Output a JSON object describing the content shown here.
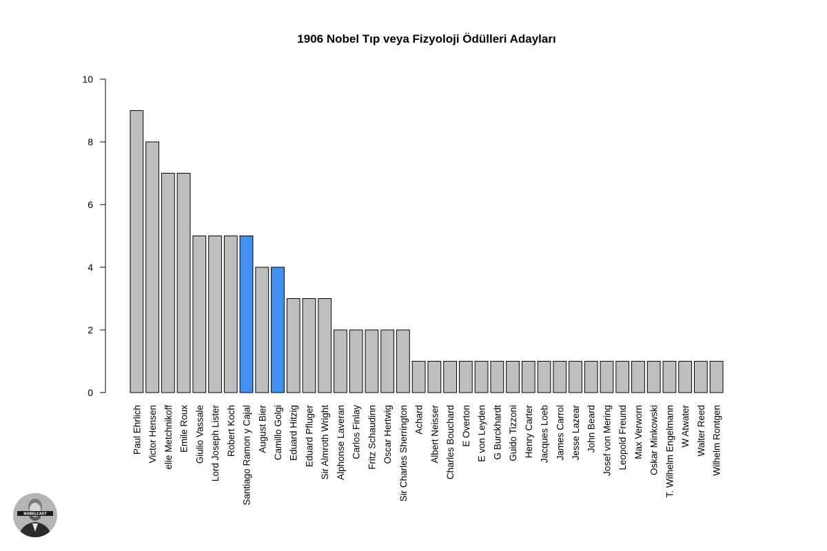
{
  "chart_data": {
    "type": "bar",
    "title": "1906 Nobel Tıp veya Fizyoloji Ödülleri Adayları",
    "xlabel": "",
    "ylabel": "",
    "ylim": [
      0,
      10
    ],
    "yticks": [
      0,
      2,
      4,
      6,
      8,
      10
    ],
    "grid": false,
    "legend": "none",
    "categories": [
      "Paul Ehrlich",
      "Victor Hensen",
      "elie Metchnikoff",
      "Emile Roux",
      "Giulio Vassale",
      "Lord Joseph Lister",
      "Robert Koch",
      "Santiago Ramon y Cajal",
      "August Bier",
      "Camillo Golgi",
      "Eduard Hitzig",
      "Eduard Pfluger",
      "Sir Almroth Wright",
      "Alphonse Laveran",
      "Carlos Finlay",
      "Fritz Schaudinn",
      "Oscar Hertwig",
      "Sir Charles Sherrington",
      "Achard",
      "Albert Neisser",
      "Charles Bouchard",
      "E Overton",
      "E von Leyden",
      "G Burckhardt",
      "Guido Tizzoni",
      "Henry Carter",
      "Jacques Loeb",
      "James Carrol",
      "Jesse Lazear",
      "John Beard",
      "Josef von Mering",
      "Leopold Freund",
      "Max Verworn",
      "Oskar Minkowski",
      "T. Wilhelm Engelmann",
      "W Atwater",
      "Walter Reed",
      "Wilhelm Rontgen"
    ],
    "values": [
      9,
      8,
      7,
      7,
      5,
      5,
      5,
      5,
      4,
      4,
      3,
      3,
      3,
      2,
      2,
      2,
      2,
      2,
      1,
      1,
      1,
      1,
      1,
      1,
      1,
      1,
      1,
      1,
      1,
      1,
      1,
      1,
      1,
      1,
      1,
      1,
      1,
      1
    ],
    "highlighted": [
      "Santiago Ramon y Cajal",
      "Camillo Golgi"
    ],
    "colors": {
      "bar": "#bebebe",
      "highlight": "#4191f2",
      "stroke": "#000000"
    }
  },
  "logo": {
    "text": "NOBELCAST"
  }
}
